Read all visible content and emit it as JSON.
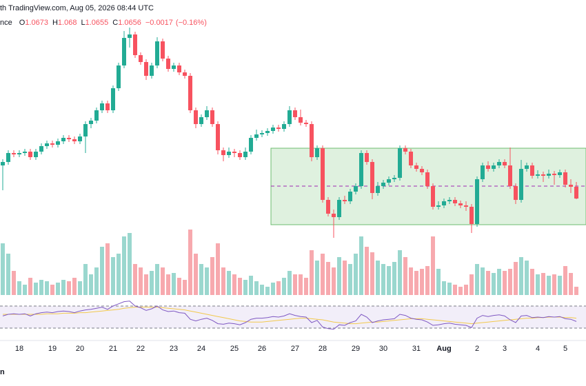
{
  "chart_data": {
    "type": "candlestick",
    "source": "th TradingView.com, Aug 05, 2026 08:44 UTC",
    "legend_prefix": "nce",
    "ohlc_labels": [
      "O",
      "H",
      "L",
      "C"
    ],
    "change": "−0.0017",
    "change_pct": "(−0.16%)",
    "footer": "n",
    "up_color": "#22ab94",
    "down_color": "#f7525f",
    "volume_up_color": "#9ad7ce",
    "volume_down_color": "#f7a9ae",
    "rsi_color": "#7e57c2",
    "rsi_ma_color": "#f2c94c",
    "box_color": "#4caf50",
    "ylim": [
      1.0594,
      1.0944
    ],
    "volume_ylim": [
      0,
      100
    ],
    "rsi_ylim": [
      15,
      85
    ],
    "rsi_levels": [
      70,
      30
    ],
    "box": {
      "start_index": 49,
      "top": 1.0729,
      "bottom": 1.0618,
      "mid": 1.0674
    },
    "categories": [
      null,
      null,
      null,
      "18",
      null,
      null,
      null,
      null,
      null,
      "19",
      null,
      null,
      null,
      null,
      "20",
      null,
      null,
      null,
      null,
      null,
      "21",
      null,
      null,
      null,
      null,
      "22",
      null,
      null,
      null,
      null,
      null,
      "23",
      null,
      null,
      null,
      null,
      "24",
      null,
      null,
      null,
      null,
      null,
      "25",
      null,
      null,
      null,
      null,
      "26",
      null,
      null,
      null,
      null,
      null,
      "27",
      null,
      null,
      null,
      null,
      "28",
      null,
      null,
      null,
      null,
      null,
      "29",
      null,
      null,
      null,
      null,
      "30",
      null,
      null,
      null,
      null,
      null,
      "31",
      null,
      null,
      null,
      null,
      "Aug",
      null,
      null,
      null,
      null,
      null,
      "2",
      null,
      null,
      null,
      null,
      "3",
      null,
      null,
      null,
      null,
      null,
      "4",
      null,
      null,
      null,
      null,
      "5",
      null,
      null
    ],
    "ohlc": [
      [
        1.0704,
        1.0713,
        1.0668,
        1.0709
      ],
      [
        1.0709,
        1.0726,
        1.0705,
        1.0722
      ],
      [
        1.0722,
        1.0726,
        1.0716,
        1.072
      ],
      [
        1.072,
        1.0726,
        1.0716,
        1.0722
      ],
      [
        1.0722,
        1.0728,
        1.0718,
        1.0724
      ],
      [
        1.0724,
        1.0728,
        1.0712,
        1.0716
      ],
      [
        1.0716,
        1.0728,
        1.0712,
        1.0724
      ],
      [
        1.0724,
        1.0736,
        1.072,
        1.0732
      ],
      [
        1.0732,
        1.074,
        1.0728,
        1.0736
      ],
      [
        1.0736,
        1.074,
        1.073,
        1.0734
      ],
      [
        1.0734,
        1.0743,
        1.073,
        1.0739
      ],
      [
        1.0739,
        1.0748,
        1.0735,
        1.0744
      ],
      [
        1.0744,
        1.0748,
        1.0738,
        1.0742
      ],
      [
        1.0742,
        1.0746,
        1.0735,
        1.0739
      ],
      [
        1.0739,
        1.075,
        1.0735,
        1.0746
      ],
      [
        1.0746,
        1.0768,
        1.0722,
        1.0764
      ],
      [
        1.0764,
        1.0773,
        1.0758,
        1.0769
      ],
      [
        1.0769,
        1.0788,
        1.0765,
        1.0784
      ],
      [
        1.0784,
        1.0798,
        1.078,
        1.0794
      ],
      [
        1.0794,
        1.0798,
        1.078,
        1.0784
      ],
      [
        1.0784,
        1.082,
        1.078,
        1.0816
      ],
      [
        1.0816,
        1.0853,
        1.0812,
        1.0849
      ],
      [
        1.0849,
        1.0899,
        1.0845,
        1.0889
      ],
      [
        1.0889,
        1.0904,
        1.0875,
        1.0894
      ],
      [
        1.0894,
        1.0898,
        1.086,
        1.0864
      ],
      [
        1.0864,
        1.0868,
        1.085,
        1.0854
      ],
      [
        1.0854,
        1.0858,
        1.0828,
        1.0834
      ],
      [
        1.0834,
        1.0853,
        1.083,
        1.0849
      ],
      [
        1.0849,
        1.089,
        1.0845,
        1.0884
      ],
      [
        1.0884,
        1.0888,
        1.0855,
        1.0859
      ],
      [
        1.0859,
        1.0863,
        1.084,
        1.0844
      ],
      [
        1.0844,
        1.0853,
        1.084,
        1.0849
      ],
      [
        1.0849,
        1.0853,
        1.0835,
        1.0839
      ],
      [
        1.0839,
        1.0843,
        1.083,
        1.0834
      ],
      [
        1.0834,
        1.0838,
        1.078,
        1.0784
      ],
      [
        1.0784,
        1.0788,
        1.0758,
        1.0764
      ],
      [
        1.0764,
        1.0778,
        1.076,
        1.0774
      ],
      [
        1.0774,
        1.079,
        1.077,
        1.0784
      ],
      [
        1.0784,
        1.0788,
        1.076,
        1.0764
      ],
      [
        1.0764,
        1.0768,
        1.072,
        1.0726
      ],
      [
        1.0726,
        1.073,
        1.071,
        1.0719
      ],
      [
        1.0719,
        1.073,
        1.0715,
        1.0724
      ],
      [
        1.0724,
        1.0728,
        1.0716,
        1.0722
      ],
      [
        1.0722,
        1.0726,
        1.0712,
        1.0716
      ],
      [
        1.0716,
        1.073,
        1.0712,
        1.0724
      ],
      [
        1.0724,
        1.0748,
        1.072,
        1.0744
      ],
      [
        1.0744,
        1.0756,
        1.074,
        1.0749
      ],
      [
        1.0749,
        1.0755,
        1.0745,
        1.0751
      ],
      [
        1.0751,
        1.0758,
        1.0747,
        1.0754
      ],
      [
        1.0754,
        1.0763,
        1.075,
        1.0759
      ],
      [
        1.0759,
        1.0763,
        1.0753,
        1.0757
      ],
      [
        1.0757,
        1.0768,
        1.0753,
        1.0764
      ],
      [
        1.0764,
        1.079,
        1.076,
        1.0784
      ],
      [
        1.0784,
        1.0788,
        1.077,
        1.0774
      ],
      [
        1.0774,
        1.0785,
        1.0762,
        1.0766
      ],
      [
        1.0766,
        1.077,
        1.076,
        1.0764
      ],
      [
        1.0764,
        1.0768,
        1.071,
        1.0716
      ],
      [
        1.0716,
        1.0733,
        1.0712,
        1.0729
      ],
      [
        1.0729,
        1.0733,
        1.065,
        1.0654
      ],
      [
        1.0654,
        1.0658,
        1.063,
        1.0634
      ],
      [
        1.0634,
        1.064,
        1.0599,
        1.0629
      ],
      [
        1.0629,
        1.0658,
        1.0625,
        1.0654
      ],
      [
        1.0654,
        1.066,
        1.0648,
        1.0652
      ],
      [
        1.0652,
        1.067,
        1.0648,
        1.0666
      ],
      [
        1.0666,
        1.0678,
        1.0662,
        1.0674
      ],
      [
        1.0674,
        1.0726,
        1.067,
        1.0722
      ],
      [
        1.0722,
        1.0726,
        1.0705,
        1.0709
      ],
      [
        1.0709,
        1.0713,
        1.0655,
        1.0664
      ],
      [
        1.0664,
        1.068,
        1.066,
        1.0674
      ],
      [
        1.0674,
        1.0683,
        1.067,
        1.0679
      ],
      [
        1.0679,
        1.0688,
        1.0675,
        1.0684
      ],
      [
        1.0684,
        1.069,
        1.068,
        1.0686
      ],
      [
        1.0686,
        1.0733,
        1.0682,
        1.0729
      ],
      [
        1.0729,
        1.0733,
        1.072,
        1.0724
      ],
      [
        1.0724,
        1.0728,
        1.07,
        1.0704
      ],
      [
        1.0704,
        1.0708,
        1.0695,
        1.0699
      ],
      [
        1.0699,
        1.0703,
        1.069,
        1.0694
      ],
      [
        1.0694,
        1.0698,
        1.067,
        1.0674
      ],
      [
        1.0674,
        1.0678,
        1.064,
        1.0644
      ],
      [
        1.0644,
        1.0652,
        1.064,
        1.0646
      ],
      [
        1.0646,
        1.0656,
        1.0642,
        1.0652
      ],
      [
        1.0652,
        1.0658,
        1.0648,
        1.0654
      ],
      [
        1.0654,
        1.0658,
        1.0645,
        1.0649
      ],
      [
        1.0649,
        1.0653,
        1.0642,
        1.0646
      ],
      [
        1.0646,
        1.0652,
        1.0638,
        1.0644
      ],
      [
        1.0644,
        1.0648,
        1.0606,
        1.0619
      ],
      [
        1.0619,
        1.0688,
        1.0615,
        1.0684
      ],
      [
        1.0684,
        1.0708,
        1.068,
        1.0704
      ],
      [
        1.0704,
        1.071,
        1.0695,
        1.0699
      ],
      [
        1.0699,
        1.0708,
        1.0695,
        1.0704
      ],
      [
        1.0704,
        1.0713,
        1.07,
        1.0709
      ],
      [
        1.0709,
        1.0713,
        1.07,
        1.0704
      ],
      [
        1.0704,
        1.073,
        1.067,
        1.0674
      ],
      [
        1.0674,
        1.0678,
        1.0648,
        1.0654
      ],
      [
        1.0654,
        1.0712,
        1.065,
        1.0699
      ],
      [
        1.0699,
        1.0708,
        1.0695,
        1.0704
      ],
      [
        1.0704,
        1.0708,
        1.0685,
        1.0689
      ],
      [
        1.0689,
        1.0697,
        1.0685,
        1.0691
      ],
      [
        1.0691,
        1.0695,
        1.068,
        1.0689
      ],
      [
        1.0689,
        1.0698,
        1.0685,
        1.0692
      ],
      [
        1.0692,
        1.0696,
        1.0676,
        1.069
      ],
      [
        1.069,
        1.0698,
        1.0686,
        1.0694
      ],
      [
        1.0694,
        1.0698,
        1.0672,
        1.0676
      ],
      [
        1.0676,
        1.0684,
        1.0664,
        1.0673
      ],
      [
        1.0673,
        1.068,
        1.0655,
        1.0656
      ]
    ],
    "volume": [
      75,
      60,
      35,
      20,
      15,
      25,
      18,
      22,
      20,
      15,
      18,
      22,
      20,
      25,
      20,
      45,
      30,
      40,
      70,
      75,
      55,
      60,
      85,
      90,
      45,
      40,
      30,
      35,
      45,
      40,
      30,
      32,
      25,
      22,
      95,
      60,
      45,
      40,
      55,
      75,
      40,
      35,
      30,
      25,
      22,
      28,
      20,
      15,
      12,
      18,
      20,
      25,
      35,
      30,
      30,
      25,
      65,
      50,
      60,
      48,
      40,
      55,
      50,
      45,
      60,
      85,
      70,
      62,
      50,
      45,
      42,
      48,
      65,
      55,
      40,
      35,
      38,
      42,
      85,
      38,
      20,
      18,
      15,
      12,
      15,
      30,
      45,
      40,
      35,
      32,
      38,
      35,
      38,
      48,
      55,
      50,
      38,
      30,
      32,
      28,
      30,
      28,
      42,
      32,
      12
    ],
    "rsi": [
      52,
      55,
      56,
      55,
      56,
      52,
      56,
      58,
      59,
      58,
      60,
      61,
      60,
      58,
      61,
      63,
      64,
      66,
      68,
      64,
      70,
      74,
      78,
      79,
      70,
      67,
      62,
      65,
      70,
      63,
      60,
      61,
      58,
      57,
      46,
      43,
      46,
      48,
      44,
      38,
      37,
      39,
      38,
      36,
      40,
      46,
      48,
      48,
      49,
      51,
      50,
      52,
      56,
      53,
      51,
      50,
      40,
      44,
      32,
      29,
      28,
      36,
      35,
      40,
      43,
      55,
      50,
      40,
      43,
      45,
      46,
      47,
      55,
      53,
      48,
      46,
      45,
      41,
      35,
      36,
      38,
      39,
      37,
      36,
      35,
      31,
      48,
      53,
      51,
      53,
      54,
      52,
      45,
      40,
      52,
      53,
      49,
      50,
      49,
      51,
      50,
      51,
      47,
      46,
      42
    ],
    "rsi_ma": [
      55,
      55,
      55,
      55,
      55,
      55,
      55,
      55,
      56,
      56,
      56,
      57,
      57,
      57,
      58,
      58,
      59,
      60,
      61,
      62,
      63,
      64,
      66,
      67,
      68,
      68,
      68,
      68,
      68,
      67,
      66,
      65,
      64,
      63,
      61,
      59,
      57,
      55,
      53,
      51,
      49,
      47,
      45,
      43,
      42,
      41,
      41,
      41,
      42,
      43,
      44,
      45,
      46,
      47,
      48,
      48,
      47,
      46,
      45,
      43,
      41,
      40,
      39,
      38,
      38,
      39,
      40,
      41,
      41,
      42,
      43,
      44,
      45,
      46,
      47,
      47,
      47,
      46,
      45,
      44,
      43,
      42,
      41,
      40,
      39,
      38,
      39,
      40,
      41,
      42,
      43,
      44,
      45,
      46,
      47,
      48,
      48,
      49,
      49,
      50,
      50,
      50,
      49,
      49,
      48
    ]
  }
}
